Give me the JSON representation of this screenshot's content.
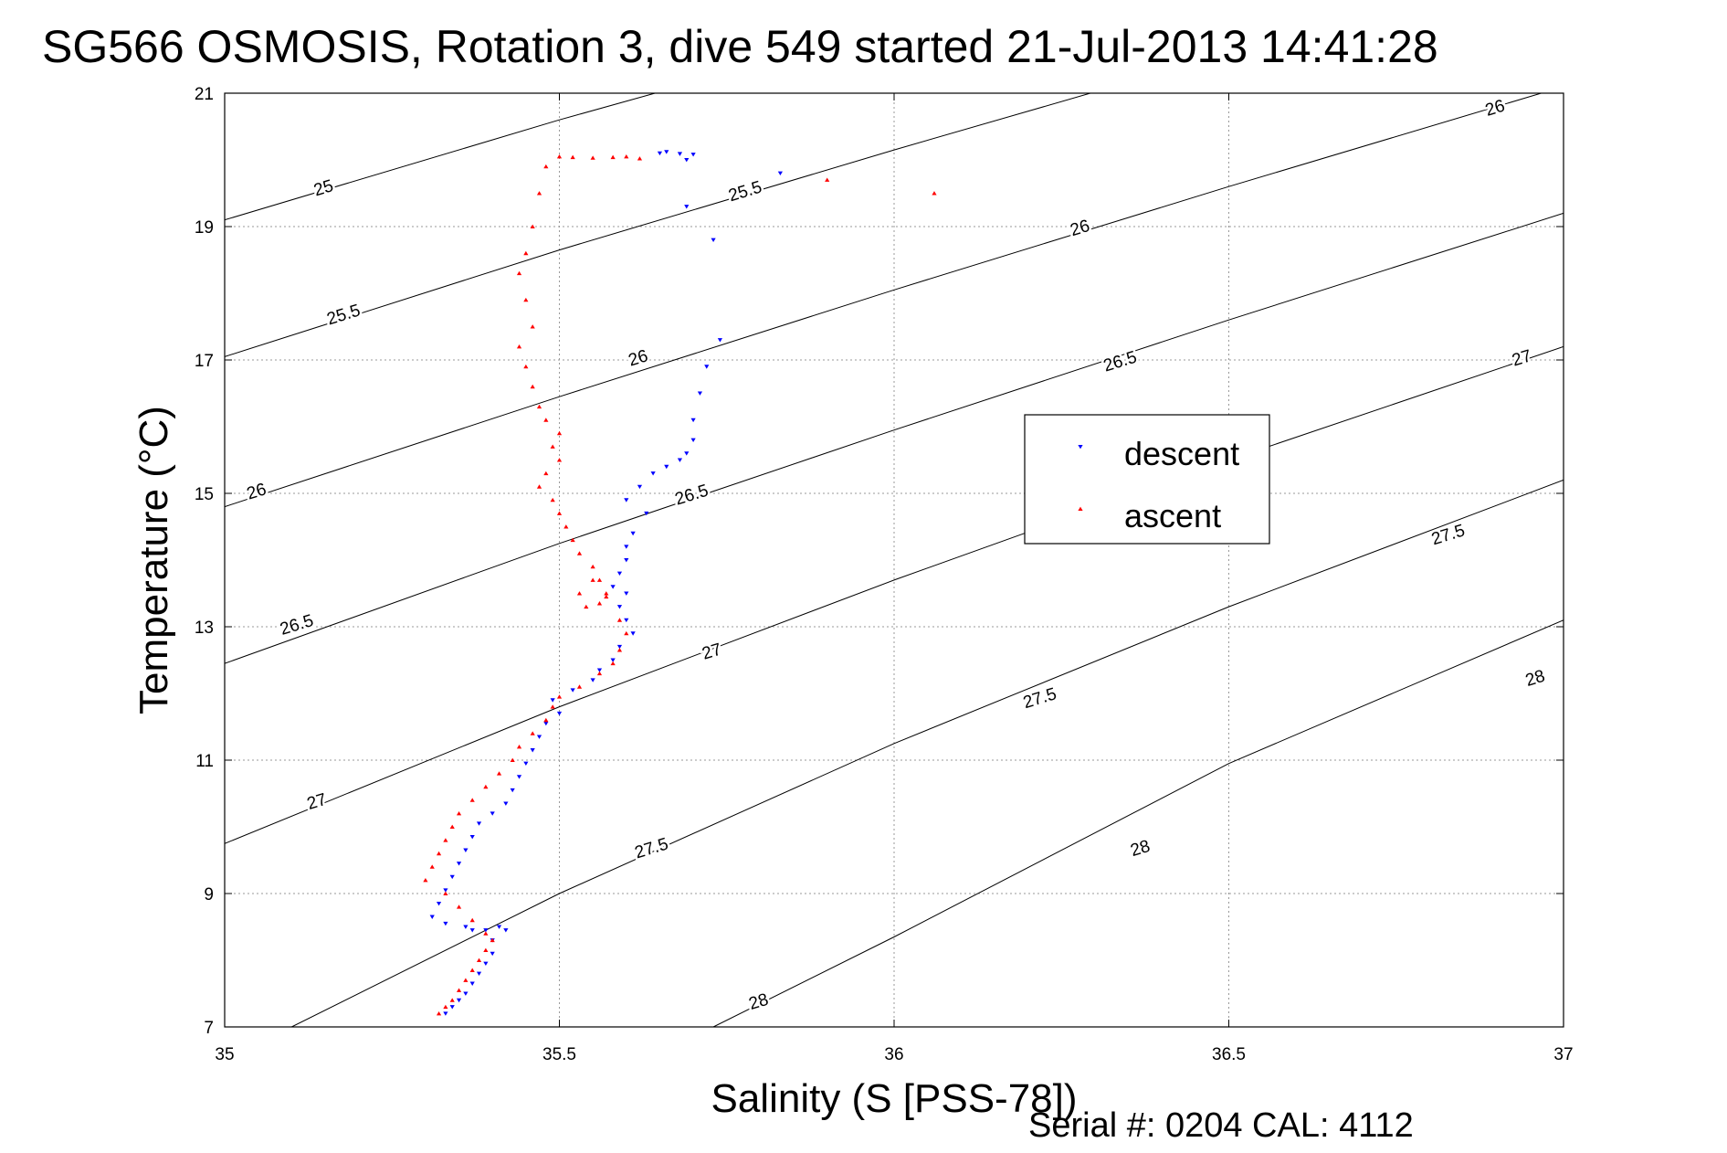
{
  "chart_data": {
    "type": "scatter",
    "title": "SG566 OSMOSIS, Rotation 3, dive 549 started 21-Jul-2013 14:41:28",
    "xlabel": "Salinity (S [PSS-78])",
    "ylabel": "Temperature (°C)",
    "xlim": [
      35,
      37
    ],
    "ylim": [
      7,
      21
    ],
    "x_ticks": [
      "35",
      "35.5",
      "36",
      "36.5",
      "37"
    ],
    "y_ticks": [
      "7",
      "9",
      "11",
      "13",
      "15",
      "17",
      "19",
      "21"
    ],
    "grid": true,
    "legend_position": "center-right",
    "footer": "Serial #: 0204  CAL: 4112",
    "series": [
      {
        "name": "descent",
        "color": "#0000ff",
        "marker": "triangle-down",
        "x": [
          35.65,
          35.66,
          35.68,
          35.69,
          35.7,
          35.83,
          35.69,
          35.73,
          35.74,
          35.72,
          35.71,
          35.7,
          35.7,
          35.69,
          35.68,
          35.66,
          35.64,
          35.62,
          35.6,
          35.63,
          35.61,
          35.6,
          35.6,
          35.59,
          35.58,
          35.6,
          35.59,
          35.6,
          35.61,
          35.59,
          35.58,
          35.56,
          35.55,
          35.52,
          35.49,
          35.5,
          35.48,
          35.47,
          35.46,
          35.45,
          35.44,
          35.43,
          35.42,
          35.4,
          35.38,
          35.37,
          35.36,
          35.35,
          35.34,
          35.33,
          35.32,
          35.31,
          35.33,
          35.36,
          35.37,
          35.39,
          35.41,
          35.42,
          35.4,
          35.4,
          35.39,
          35.38,
          35.37,
          35.36,
          35.35,
          35.34,
          35.33
        ],
        "y": [
          20.1,
          20.12,
          20.09,
          20.0,
          20.08,
          19.8,
          19.3,
          18.8,
          17.3,
          16.9,
          16.5,
          16.1,
          15.8,
          15.6,
          15.5,
          15.4,
          15.3,
          15.1,
          14.9,
          14.7,
          14.4,
          14.2,
          14.0,
          13.8,
          13.6,
          13.5,
          13.3,
          13.1,
          12.9,
          12.7,
          12.5,
          12.35,
          12.2,
          12.05,
          11.9,
          11.7,
          11.55,
          11.35,
          11.15,
          10.95,
          10.75,
          10.55,
          10.35,
          10.2,
          10.05,
          9.85,
          9.65,
          9.45,
          9.25,
          9.05,
          8.85,
          8.65,
          8.55,
          8.5,
          8.45,
          8.45,
          8.5,
          8.45,
          8.3,
          8.1,
          7.95,
          7.8,
          7.65,
          7.5,
          7.4,
          7.3,
          7.2
        ]
      },
      {
        "name": "ascent",
        "color": "#ff0000",
        "marker": "triangle-up",
        "x": [
          35.5,
          35.52,
          35.55,
          35.58,
          35.6,
          35.62,
          35.9,
          36.06,
          35.48,
          35.47,
          35.46,
          35.45,
          35.44,
          35.45,
          35.46,
          35.44,
          35.45,
          35.46,
          35.47,
          35.48,
          35.5,
          35.49,
          35.5,
          35.48,
          35.47,
          35.49,
          35.5,
          35.51,
          35.52,
          35.53,
          35.55,
          35.56,
          35.57,
          35.56,
          35.54,
          35.53,
          35.55,
          35.57,
          35.59,
          35.6,
          35.59,
          35.58,
          35.56,
          35.53,
          35.5,
          35.49,
          35.48,
          35.46,
          35.44,
          35.43,
          35.41,
          35.39,
          35.37,
          35.35,
          35.34,
          35.33,
          35.32,
          35.31,
          35.3,
          35.33,
          35.35,
          35.37,
          35.39,
          35.4,
          35.39,
          35.38,
          35.37,
          35.36,
          35.35,
          35.34,
          35.33,
          35.32
        ],
        "y": [
          20.05,
          20.04,
          20.03,
          20.04,
          20.05,
          20.02,
          19.7,
          19.5,
          19.9,
          19.5,
          19.0,
          18.6,
          18.3,
          17.9,
          17.5,
          17.2,
          16.9,
          16.6,
          16.3,
          16.1,
          15.9,
          15.7,
          15.5,
          15.3,
          15.1,
          14.9,
          14.7,
          14.5,
          14.3,
          14.1,
          13.9,
          13.7,
          13.5,
          13.35,
          13.3,
          13.5,
          13.7,
          13.45,
          13.1,
          12.9,
          12.65,
          12.45,
          12.3,
          12.1,
          11.95,
          11.8,
          11.6,
          11.4,
          11.2,
          11.0,
          10.8,
          10.6,
          10.4,
          10.2,
          10.0,
          9.8,
          9.6,
          9.4,
          9.2,
          9.0,
          8.8,
          8.6,
          8.4,
          8.3,
          8.15,
          8.0,
          7.85,
          7.7,
          7.55,
          7.4,
          7.3,
          7.2
        ]
      }
    ],
    "density_contours": [
      {
        "label": "25",
        "x": [
          35,
          35.5,
          36,
          36.5,
          37
        ],
        "y": [
          19.1,
          20.6,
          22.0,
          23.4,
          24.7
        ],
        "label_positions": [
          [
            35.15,
            19.5
          ]
        ]
      },
      {
        "label": "25.5",
        "x": [
          35,
          35.5,
          36,
          36.5,
          37
        ],
        "y": [
          17.05,
          18.65,
          20.15,
          21.6,
          23.0
        ],
        "label_positions": [
          [
            35.18,
            17.6
          ],
          [
            35.78,
            19.45
          ]
        ]
      },
      {
        "label": "26",
        "x": [
          35,
          35.5,
          36,
          36.5,
          37
        ],
        "y": [
          14.8,
          16.45,
          18.05,
          19.6,
          21.1
        ],
        "label_positions": [
          [
            35.05,
            14.95
          ],
          [
            35.62,
            16.95
          ],
          [
            36.28,
            18.9
          ],
          [
            36.9,
            20.7
          ]
        ]
      },
      {
        "label": "26.5",
        "x": [
          35,
          35.5,
          36,
          36.5,
          37
        ],
        "y": [
          12.45,
          14.25,
          15.95,
          17.6,
          19.2
        ],
        "label_positions": [
          [
            35.11,
            12.95
          ],
          [
            35.7,
            14.9
          ],
          [
            36.34,
            16.9
          ]
        ]
      },
      {
        "label": "27",
        "x": [
          35,
          35.5,
          36,
          36.5,
          37
        ],
        "y": [
          9.75,
          11.8,
          13.7,
          15.5,
          17.2
        ],
        "label_positions": [
          [
            35.14,
            10.3
          ],
          [
            35.73,
            12.55
          ],
          [
            36.94,
            16.95
          ]
        ]
      },
      {
        "label": "27.5",
        "x": [
          35.1,
          35.5,
          36,
          36.5,
          37
        ],
        "y": [
          7.0,
          9.0,
          11.25,
          13.3,
          15.2
        ],
        "label_positions": [
          [
            35.64,
            9.6
          ],
          [
            36.22,
            11.85
          ],
          [
            36.83,
            14.3
          ]
        ]
      },
      {
        "label": "28",
        "x": [
          35.73,
          36,
          36.5,
          37
        ],
        "y": [
          7.0,
          8.35,
          10.95,
          13.1
        ],
        "label_positions": [
          [
            35.8,
            7.3
          ],
          [
            36.37,
            9.6
          ],
          [
            36.96,
            12.15
          ]
        ]
      }
    ]
  }
}
